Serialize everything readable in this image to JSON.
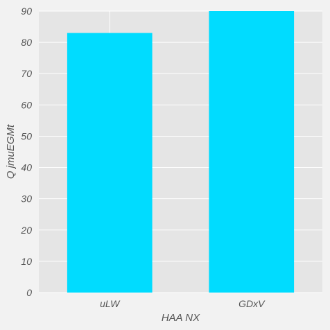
{
  "chart_data": {
    "type": "bar",
    "title": "",
    "xlabel": "HAA NX",
    "ylabel": "Q jmuEGMt",
    "categories": [
      "uLW",
      "GDxV"
    ],
    "series": [
      {
        "values": [
          83,
          90
        ]
      }
    ],
    "ylim": [
      0,
      90
    ],
    "yticks": [
      0,
      10,
      20,
      30,
      40,
      50,
      60,
      70,
      80,
      90
    ],
    "grid": true,
    "colors": {
      "bar": "#00dcff",
      "plot_background": "#e5e5e5",
      "figure_background": "#f2f2f2",
      "grid": "#ffffff",
      "text": "#555555"
    }
  }
}
